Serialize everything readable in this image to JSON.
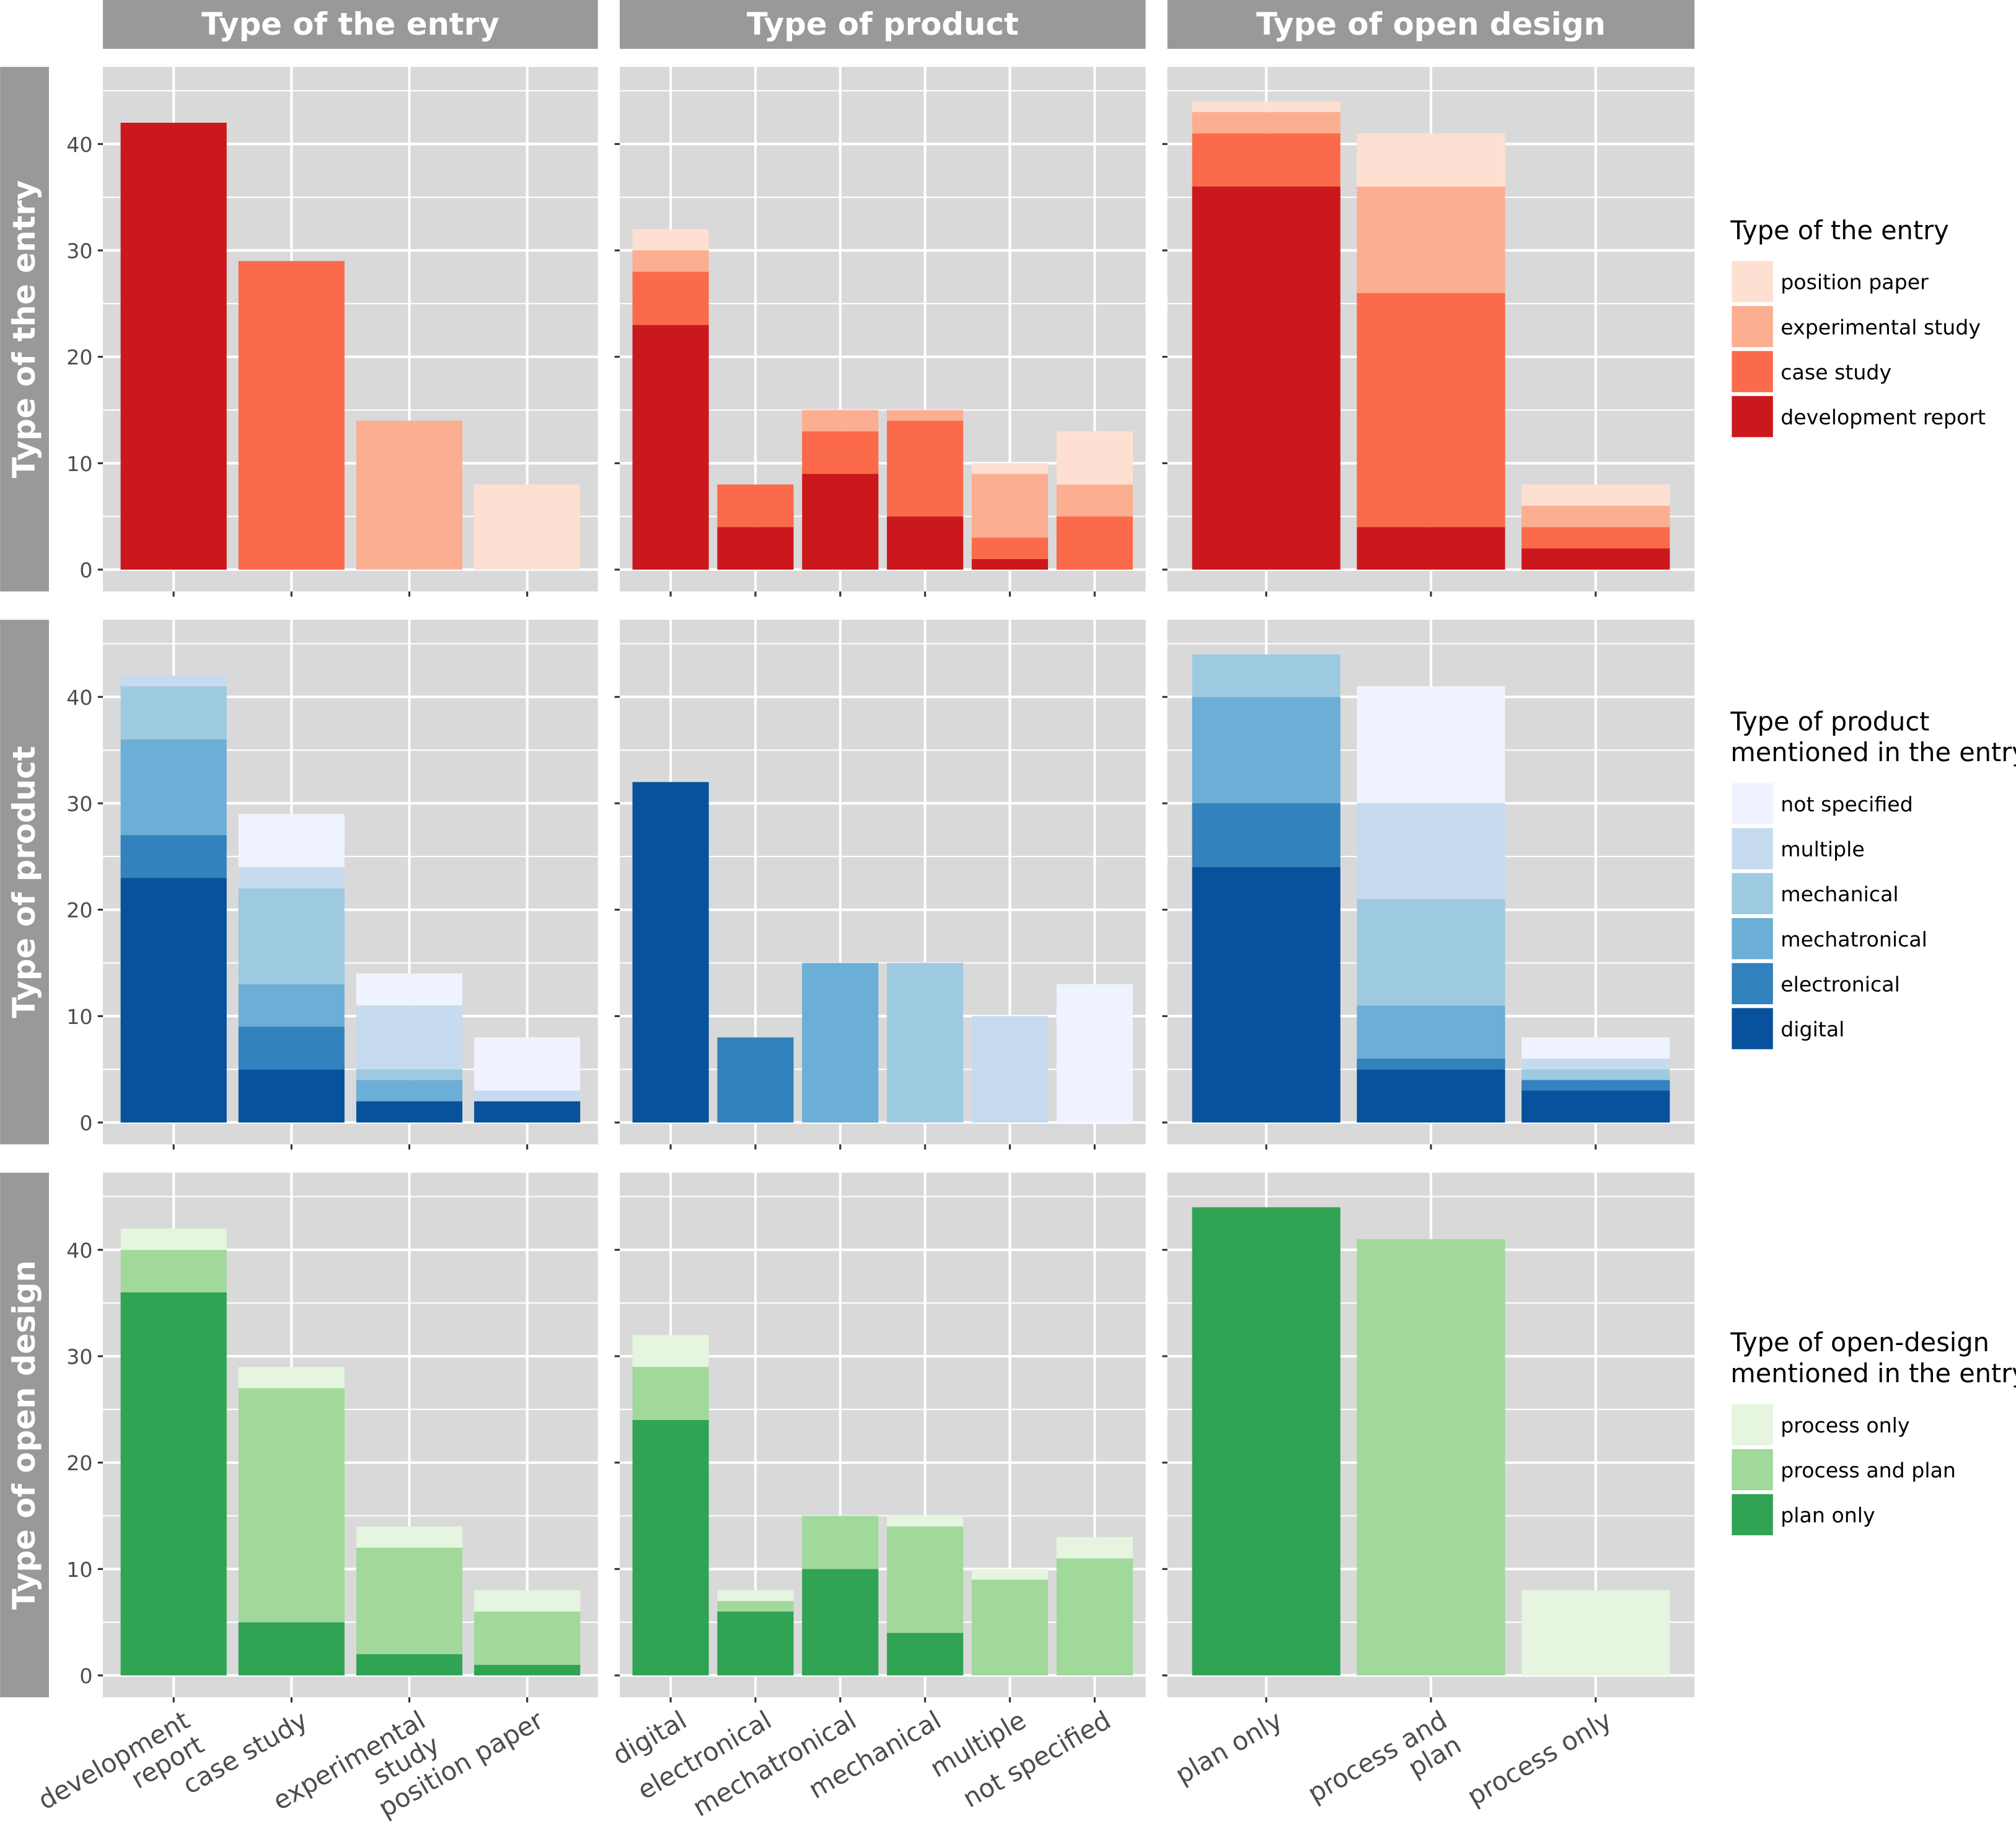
{
  "facets": {
    "columns": [
      "Type of the entry",
      "Type of product",
      "Type of open design"
    ],
    "rows": [
      "Type of the entry",
      "Type of product",
      "Type of open design"
    ]
  },
  "x_tick_labels": [
    [
      [
        "development",
        "report"
      ],
      [
        "case study"
      ],
      [
        "experimental",
        "study"
      ],
      [
        "position paper"
      ]
    ],
    [
      [
        "digital"
      ],
      [
        "electronical"
      ],
      [
        "mechatronical"
      ],
      [
        "mechanical"
      ],
      [
        "multiple"
      ],
      [
        "not specified"
      ]
    ],
    [
      [
        "plan only"
      ],
      [
        "process and",
        "plan"
      ],
      [
        "process only"
      ]
    ]
  ],
  "y_ticks": [
    "0",
    "10",
    "20",
    "30",
    "40"
  ],
  "legends": [
    {
      "title": [
        "Type of the entry"
      ],
      "items": [
        {
          "label": "position paper",
          "color": "#fee0d2"
        },
        {
          "label": "experimental study",
          "color": "#fcae91"
        },
        {
          "label": "case study",
          "color": "#fb6a4a"
        },
        {
          "label": "development report",
          "color": "#cb181d"
        }
      ]
    },
    {
      "title": [
        "Type of product",
        "mentioned in the entry"
      ],
      "items": [
        {
          "label": "not specified",
          "color": "#eff3ff"
        },
        {
          "label": "multiple",
          "color": "#c6dbef"
        },
        {
          "label": "mechanical",
          "color": "#9ecae1"
        },
        {
          "label": "mechatronical",
          "color": "#6baed6"
        },
        {
          "label": "electronical",
          "color": "#3182bd"
        },
        {
          "label": "digital",
          "color": "#08519c"
        }
      ]
    },
    {
      "title": [
        "Type of open-design",
        "mentioned in the entry"
      ],
      "items": [
        {
          "label": "process only",
          "color": "#e5f5e0"
        },
        {
          "label": "process and plan",
          "color": "#a1d99b"
        },
        {
          "label": "plan only",
          "color": "#31a354"
        }
      ]
    }
  ],
  "chart_data": [
    {
      "type": "bar",
      "stacked": true,
      "row": "Type of the entry",
      "col": "Type of the entry",
      "categories": [
        "development report",
        "case study",
        "experimental study",
        "position paper"
      ],
      "series": [
        {
          "name": "development report",
          "values": [
            42,
            0,
            0,
            0
          ]
        },
        {
          "name": "case study",
          "values": [
            0,
            29,
            0,
            0
          ]
        },
        {
          "name": "experimental study",
          "values": [
            0,
            0,
            14,
            0
          ]
        },
        {
          "name": "position paper",
          "values": [
            0,
            0,
            0,
            8
          ]
        }
      ]
    },
    {
      "type": "bar",
      "stacked": true,
      "row": "Type of the entry",
      "col": "Type of product",
      "categories": [
        "digital",
        "electronical",
        "mechatronical",
        "mechanical",
        "multiple",
        "not specified"
      ],
      "series": [
        {
          "name": "development report",
          "values": [
            23,
            4,
            9,
            5,
            1,
            0
          ]
        },
        {
          "name": "case study",
          "values": [
            5,
            4,
            4,
            9,
            2,
            5
          ]
        },
        {
          "name": "experimental study",
          "values": [
            2,
            0,
            2,
            1,
            6,
            3
          ]
        },
        {
          "name": "position paper",
          "values": [
            2,
            0,
            0,
            0,
            1,
            5
          ]
        }
      ]
    },
    {
      "type": "bar",
      "stacked": true,
      "row": "Type of the entry",
      "col": "Type of open design",
      "categories": [
        "plan only",
        "process and plan",
        "process only"
      ],
      "series": [
        {
          "name": "development report",
          "values": [
            36,
            4,
            2
          ]
        },
        {
          "name": "case study",
          "values": [
            5,
            22,
            2
          ]
        },
        {
          "name": "experimental study",
          "values": [
            2,
            10,
            2
          ]
        },
        {
          "name": "position paper",
          "values": [
            1,
            5,
            2
          ]
        }
      ]
    },
    {
      "type": "bar",
      "stacked": true,
      "row": "Type of product",
      "col": "Type of the entry",
      "categories": [
        "development report",
        "case study",
        "experimental study",
        "position paper"
      ],
      "series": [
        {
          "name": "digital",
          "values": [
            23,
            5,
            2,
            2
          ]
        },
        {
          "name": "electronical",
          "values": [
            4,
            4,
            0,
            0
          ]
        },
        {
          "name": "mechatronical",
          "values": [
            9,
            4,
            2,
            0
          ]
        },
        {
          "name": "mechanical",
          "values": [
            5,
            9,
            1,
            0
          ]
        },
        {
          "name": "multiple",
          "values": [
            1,
            2,
            6,
            1
          ]
        },
        {
          "name": "not specified",
          "values": [
            0,
            5,
            3,
            5
          ]
        }
      ]
    },
    {
      "type": "bar",
      "stacked": true,
      "row": "Type of product",
      "col": "Type of product",
      "categories": [
        "digital",
        "electronical",
        "mechatronical",
        "mechanical",
        "multiple",
        "not specified"
      ],
      "series": [
        {
          "name": "digital",
          "values": [
            32,
            0,
            0,
            0,
            0,
            0
          ]
        },
        {
          "name": "electronical",
          "values": [
            0,
            8,
            0,
            0,
            0,
            0
          ]
        },
        {
          "name": "mechatronical",
          "values": [
            0,
            0,
            15,
            0,
            0,
            0
          ]
        },
        {
          "name": "mechanical",
          "values": [
            0,
            0,
            0,
            15,
            0,
            0
          ]
        },
        {
          "name": "multiple",
          "values": [
            0,
            0,
            0,
            0,
            10,
            0
          ]
        },
        {
          "name": "not specified",
          "values": [
            0,
            0,
            0,
            0,
            0,
            13
          ]
        }
      ]
    },
    {
      "type": "bar",
      "stacked": true,
      "row": "Type of product",
      "col": "Type of open design",
      "categories": [
        "plan only",
        "process and plan",
        "process only"
      ],
      "series": [
        {
          "name": "digital",
          "values": [
            24,
            5,
            3
          ]
        },
        {
          "name": "electronical",
          "values": [
            6,
            1,
            1
          ]
        },
        {
          "name": "mechatronical",
          "values": [
            10,
            5,
            0
          ]
        },
        {
          "name": "mechanical",
          "values": [
            4,
            10,
            1
          ]
        },
        {
          "name": "multiple",
          "values": [
            0,
            9,
            1
          ]
        },
        {
          "name": "not specified",
          "values": [
            0,
            11,
            2
          ]
        }
      ]
    },
    {
      "type": "bar",
      "stacked": true,
      "row": "Type of open design",
      "col": "Type of the entry",
      "categories": [
        "development report",
        "case study",
        "experimental study",
        "position paper"
      ],
      "series": [
        {
          "name": "plan only",
          "values": [
            36,
            5,
            2,
            1
          ]
        },
        {
          "name": "process and plan",
          "values": [
            4,
            22,
            10,
            5
          ]
        },
        {
          "name": "process only",
          "values": [
            2,
            2,
            2,
            2
          ]
        }
      ]
    },
    {
      "type": "bar",
      "stacked": true,
      "row": "Type of open design",
      "col": "Type of product",
      "categories": [
        "digital",
        "electronical",
        "mechatronical",
        "mechanical",
        "multiple",
        "not specified"
      ],
      "series": [
        {
          "name": "plan only",
          "values": [
            24,
            6,
            10,
            4,
            0,
            0
          ]
        },
        {
          "name": "process and plan",
          "values": [
            5,
            1,
            5,
            10,
            9,
            11
          ]
        },
        {
          "name": "process only",
          "values": [
            3,
            1,
            0,
            1,
            1,
            2
          ]
        }
      ]
    },
    {
      "type": "bar",
      "stacked": true,
      "row": "Type of open design",
      "col": "Type of open design",
      "categories": [
        "plan only",
        "process and plan",
        "process only"
      ],
      "series": [
        {
          "name": "plan only",
          "values": [
            44,
            0,
            0
          ]
        },
        {
          "name": "process and plan",
          "values": [
            0,
            41,
            0
          ]
        },
        {
          "name": "process only",
          "values": [
            0,
            0,
            8
          ]
        }
      ]
    }
  ]
}
